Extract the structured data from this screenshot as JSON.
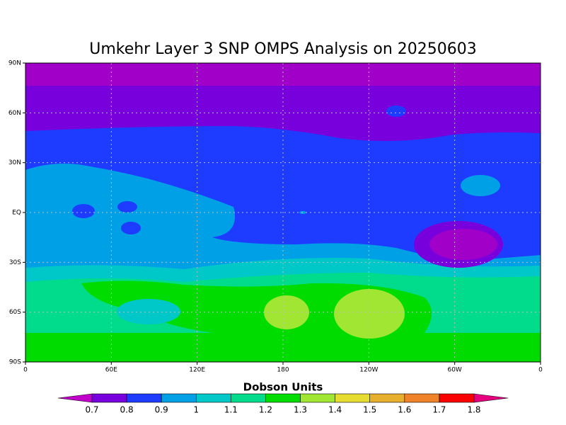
{
  "header": {
    "title": "Umkehr Layer 3 SNP OMPS Analysis on 20250603"
  },
  "map": {
    "x_tick_labels": [
      "0",
      "60E",
      "120E",
      "180",
      "120W",
      "60W",
      "0"
    ],
    "y_tick_labels": [
      "90N",
      "60N",
      "30N",
      "EQ",
      "30S",
      "60S",
      "90S"
    ]
  },
  "colorbar": {
    "title": "Dobson Units",
    "ticks": [
      0.7,
      0.8,
      0.9,
      1,
      1.1,
      1.2,
      1.3,
      1.4,
      1.5,
      1.6,
      1.7,
      1.8
    ],
    "colors": [
      "#c000c8",
      "#7800dc",
      "#1e3cff",
      "#00a0e6",
      "#00c8c8",
      "#00dc8c",
      "#00dc00",
      "#a0e632",
      "#e6dc32",
      "#e6af2d",
      "#f08228",
      "#fa0000",
      "#e6007f"
    ]
  }
}
